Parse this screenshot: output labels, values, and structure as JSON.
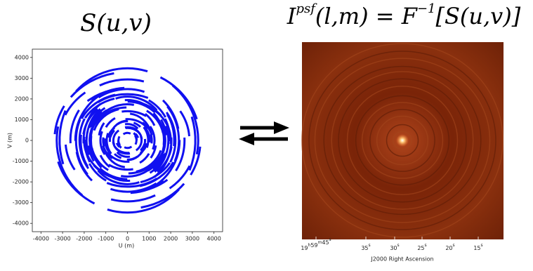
{
  "left": {
    "title": "S(u,v)",
    "xlabel": "U (m)",
    "ylabel": "V (m)",
    "xlim": [
      -4400,
      4400
    ],
    "ylim": [
      -4400,
      4400
    ],
    "xticks": [
      -4000,
      -3000,
      -2000,
      -1000,
      0,
      1000,
      2000,
      3000,
      4000
    ],
    "yticks": [
      -4000,
      -3000,
      -2000,
      -1000,
      0,
      1000,
      2000,
      3000,
      4000
    ]
  },
  "right": {
    "title": [
      "I",
      "psf",
      "(l,m)  =  F",
      "−1",
      "[S(u,v)]"
    ],
    "xlabel": "J2000 Right Ascension",
    "xtick_labels": [
      [
        [
          "19",
          "h"
        ],
        [
          "59",
          "m"
        ],
        [
          "45",
          "s"
        ]
      ],
      [
        [
          "35",
          "s"
        ]
      ],
      [
        [
          "30",
          "s"
        ]
      ],
      [
        [
          "25",
          "s"
        ]
      ],
      [
        [
          "20",
          "s"
        ]
      ],
      [
        [
          "15",
          "s"
        ]
      ]
    ]
  }
}
